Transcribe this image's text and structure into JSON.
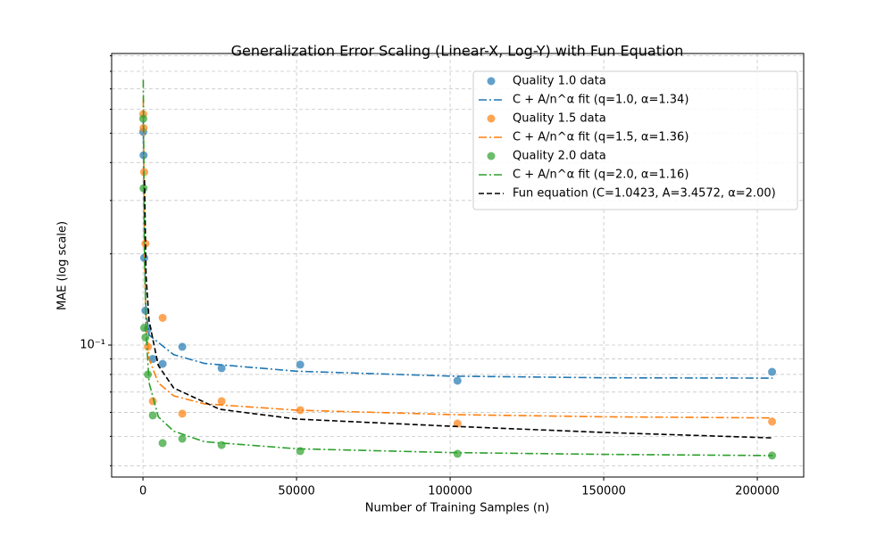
{
  "chart_data": {
    "type": "scatter",
    "title": "Generalization Error Scaling (Linear-X, Log-Y) with Fun Equation",
    "xlabel": "Number of Training Samples (n)",
    "ylabel": "MAE (log scale)",
    "xlim": [
      -10200,
      215100
    ],
    "ylim": [
      0.0367,
      0.916
    ],
    "log_y": true,
    "grid": true,
    "legend": "upper right",
    "xticks": [
      0,
      50000,
      100000,
      150000,
      200000
    ],
    "yticks": [
      {
        "value": 0.1,
        "label": "10⁻¹"
      }
    ],
    "minor_yticks": [
      0.04,
      0.05,
      0.06,
      0.07,
      0.08,
      0.09,
      0.2,
      0.3,
      0.4,
      0.5,
      0.6,
      0.7,
      0.8,
      0.9
    ],
    "series": [
      {
        "name": "Quality 1.0 data",
        "kind": "scatter",
        "color": "#1f77b4",
        "x": [
          100,
          200,
          400,
          800,
          1600,
          3200,
          6400,
          12800,
          25600,
          51200,
          102400,
          204800
        ],
        "values": [
          0.505,
          0.423,
          0.194,
          0.13,
          0.113,
          0.09,
          0.0867,
          0.0987,
          0.0839,
          0.0862,
          0.0763,
          0.0816
        ]
      },
      {
        "name": "C + A/n^α fit (q=1.0, α=1.34)",
        "kind": "line",
        "linestyle": "dashdot",
        "color": "#1f77b4",
        "x": [
          100,
          500,
          1000,
          2000,
          5000,
          10000,
          20000,
          50000,
          100000,
          150000,
          205000
        ],
        "values": [
          0.55,
          0.2,
          0.13,
          0.108,
          0.102,
          0.093,
          0.087,
          0.082,
          0.079,
          0.078,
          0.0778
        ]
      },
      {
        "name": "Quality 1.5 data",
        "kind": "scatter",
        "color": "#ff7f0e",
        "x": [
          100,
          200,
          400,
          800,
          1600,
          3200,
          6400,
          12800,
          25600,
          51200,
          102400,
          204800
        ],
        "values": [
          0.578,
          0.52,
          0.372,
          0.216,
          0.0987,
          0.0653,
          0.123,
          0.0594,
          0.0653,
          0.061,
          0.0551,
          0.0559
        ]
      },
      {
        "name": "C + A/n^α fit (q=1.5, α=1.36)",
        "kind": "line",
        "linestyle": "dashdot",
        "color": "#ff7f0e",
        "x": [
          100,
          500,
          1000,
          2000,
          5000,
          10000,
          20000,
          50000,
          100000,
          150000,
          205000
        ],
        "values": [
          0.65,
          0.2,
          0.12,
          0.09,
          0.075,
          0.068,
          0.064,
          0.061,
          0.059,
          0.058,
          0.0575
        ]
      },
      {
        "name": "Quality 2.0 data",
        "kind": "scatter",
        "color": "#2ca02c",
        "x": [
          100,
          200,
          400,
          800,
          1600,
          3200,
          6400,
          12800,
          25600,
          51200,
          102400,
          204800
        ],
        "values": [
          0.558,
          0.329,
          0.114,
          0.106,
          0.08,
          0.0586,
          0.0475,
          0.0491,
          0.0468,
          0.0447,
          0.0438,
          0.0432
        ]
      },
      {
        "name": "C + A/n^α fit (q=2.0, α=1.16)",
        "kind": "line",
        "linestyle": "dashdot",
        "color": "#2ca02c",
        "x": [
          100,
          500,
          1000,
          2000,
          5000,
          10000,
          20000,
          50000,
          100000,
          150000,
          205000
        ],
        "values": [
          0.75,
          0.2,
          0.11,
          0.075,
          0.058,
          0.052,
          0.048,
          0.0455,
          0.0442,
          0.0436,
          0.0432
        ]
      },
      {
        "name": "Fun equation (C=1.0423, A=3.4572, α=2.00)",
        "kind": "line",
        "linestyle": "dashed",
        "color": "#000000",
        "x": [
          500,
          1000,
          2000,
          5000,
          10000,
          25000,
          50000,
          100000,
          150000,
          205000
        ],
        "values": [
          0.35,
          0.17,
          0.12,
          0.0856,
          0.0722,
          0.0614,
          0.057,
          0.054,
          0.0515,
          0.0494
        ]
      }
    ]
  }
}
